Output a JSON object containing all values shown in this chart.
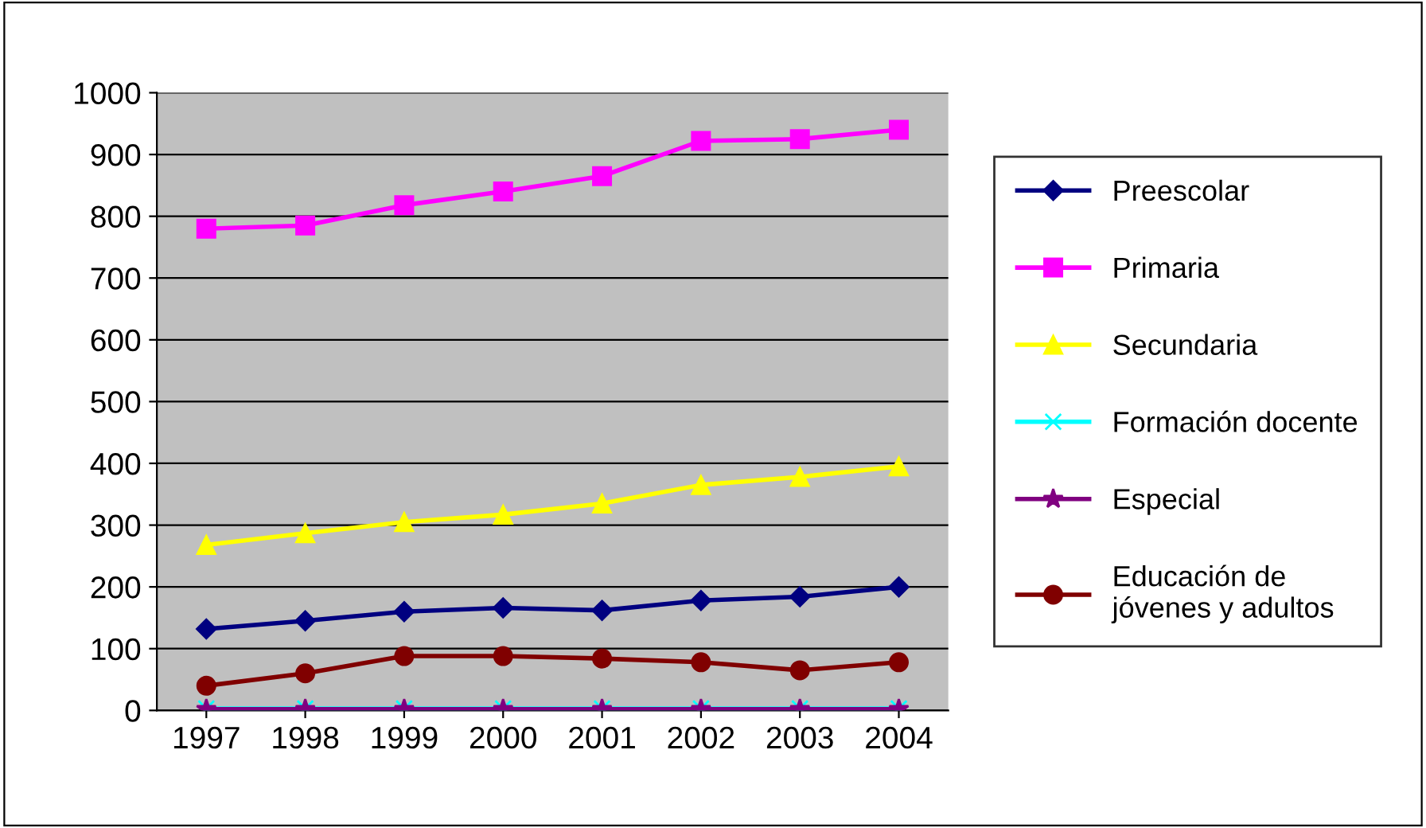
{
  "chart_data": {
    "type": "line",
    "categories": [
      "1997",
      "1998",
      "1999",
      "2000",
      "2001",
      "2002",
      "2003",
      "2004"
    ],
    "series": [
      {
        "name": "Preescolar",
        "color": "#000080",
        "marker": "diamond",
        "values": [
          132,
          145,
          160,
          166,
          162,
          178,
          184,
          200
        ]
      },
      {
        "name": "Primaria",
        "color": "#ff00ff",
        "marker": "square",
        "values": [
          780,
          785,
          818,
          840,
          865,
          922,
          925,
          940
        ]
      },
      {
        "name": "Secundaria",
        "color": "#ffff00",
        "marker": "triangle",
        "values": [
          268,
          287,
          305,
          317,
          335,
          365,
          378,
          395
        ]
      },
      {
        "name": "Formación docente",
        "color": "#00ffff",
        "marker": "cross",
        "values": [
          3,
          3,
          3,
          3,
          3,
          3,
          3,
          3
        ]
      },
      {
        "name": "Especial",
        "color": "#800080",
        "marker": "star",
        "values": [
          2,
          2,
          2,
          2,
          2,
          2,
          2,
          2
        ]
      },
      {
        "name": "Educación de jóvenes y adultos",
        "color": "#800000",
        "marker": "circle",
        "values": [
          40,
          60,
          88,
          88,
          84,
          78,
          65,
          78
        ]
      }
    ],
    "ylim": [
      0,
      1000
    ],
    "yticks": [
      0,
      100,
      200,
      300,
      400,
      500,
      600,
      700,
      800,
      900,
      1000
    ],
    "grid": "y",
    "legend": "right"
  }
}
